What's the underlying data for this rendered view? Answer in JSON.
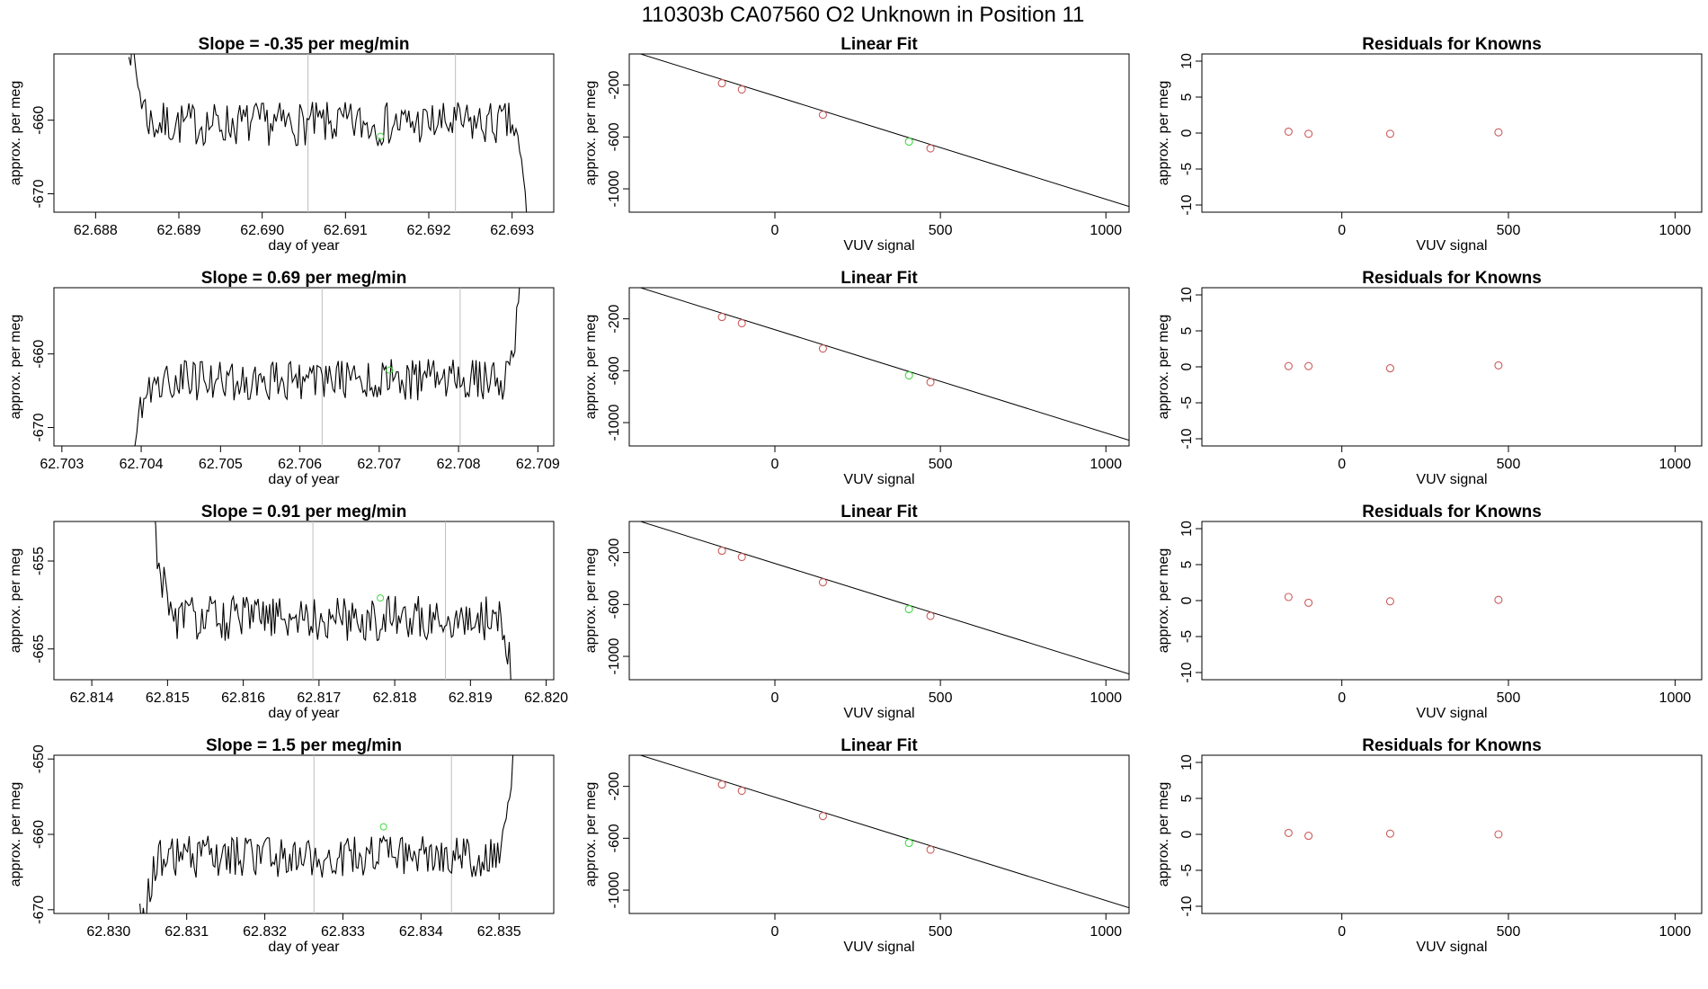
{
  "figure": {
    "title": "110303b      CA07560    O2 Unknown in Position  11",
    "colors": {
      "known": "#cd5c5c",
      "unknown": "#3ed83e",
      "line": "#000000",
      "vline": "#bebebe"
    }
  },
  "chart_data": [
    {
      "row": 1,
      "panel": "timeseries",
      "type": "line",
      "title": "Slope =  -0.35  per meg/min",
      "xlabel": "day of year",
      "ylabel": "approx. per meg",
      "xlim": [
        62.6875,
        62.6935
      ],
      "ylim": [
        -672.5,
        -651
      ],
      "xticks": [
        "62.688",
        "62.689",
        "62.690",
        "62.691",
        "62.692",
        "62.693"
      ],
      "yticks": [
        "-660",
        "-670"
      ],
      "trace": {
        "start": 62.6884,
        "end": 62.6932,
        "base": -660.5,
        "slope_per_day": 0,
        "noise": 3.0,
        "rise_before": 12,
        "drop_after": 14,
        "seed": 7
      },
      "window": [
        62.69055,
        62.69232
      ],
      "unknown_point": {
        "x": 62.69142,
        "y": -662.2
      }
    },
    {
      "row": 1,
      "panel": "fit",
      "type": "scatter",
      "title": "Linear Fit",
      "xlabel": "VUV signal",
      "ylabel": "approx. per meg",
      "xlim": [
        -440,
        1070
      ],
      "ylim": [
        -1180,
        40
      ],
      "xticks": [
        "0",
        "500",
        "1000"
      ],
      "yticks": [
        "-200",
        "-600",
        "-1000"
      ],
      "line": {
        "x": [
          -430,
          1070
        ],
        "y": [
          59,
          -1136
        ]
      },
      "knowns": [
        {
          "x": -160,
          "y": -186
        },
        {
          "x": -100,
          "y": -234
        },
        {
          "x": 145,
          "y": -429
        },
        {
          "x": 470,
          "y": -688
        }
      ],
      "unknown_point": {
        "x": 405,
        "y": -636
      }
    },
    {
      "row": 1,
      "panel": "residuals",
      "type": "scatter",
      "title": "Residuals for Knowns",
      "xlabel": "VUV signal",
      "ylabel": "approx. per meg",
      "xlim": [
        -420,
        1080
      ],
      "ylim": [
        -11,
        11
      ],
      "xticks": [
        "0",
        "500",
        "1000"
      ],
      "yticks": [
        "10",
        "5",
        "0",
        "-5",
        "-10"
      ],
      "points": [
        {
          "x": -160,
          "y": 0.2
        },
        {
          "x": -100,
          "y": -0.1
        },
        {
          "x": 145,
          "y": -0.1
        },
        {
          "x": 470,
          "y": 0.1
        }
      ]
    },
    {
      "row": 2,
      "panel": "timeseries",
      "type": "line",
      "title": "Slope =  0.69  per meg/min",
      "xlabel": "day of year",
      "ylabel": "approx. per meg",
      "xlim": [
        62.7029,
        62.7092
      ],
      "ylim": [
        -672.5,
        -651
      ],
      "xticks": [
        "62.703",
        "62.704",
        "62.705",
        "62.706",
        "62.707",
        "62.708",
        "62.709"
      ],
      "yticks": [
        "-660",
        "-670"
      ],
      "trace": {
        "start": 62.7039,
        "end": 62.7088,
        "base": -663.5,
        "slope_per_day": 1100,
        "noise": 2.8,
        "rise_before": -9,
        "drop_after": -14,
        "seed": 19
      },
      "window": [
        62.70628,
        62.70802
      ],
      "unknown_point": {
        "x": 62.70713,
        "y": -662.2
      }
    },
    {
      "row": 2,
      "panel": "fit",
      "type": "scatter",
      "title": "Linear Fit",
      "xlabel": "VUV signal",
      "ylabel": "approx. per meg",
      "xlim": [
        -440,
        1070
      ],
      "ylim": [
        -1180,
        40
      ],
      "xticks": [
        "0",
        "500",
        "1000"
      ],
      "yticks": [
        "-200",
        "-600",
        "-1000"
      ],
      "line": {
        "x": [
          -430,
          1070
        ],
        "y": [
          59,
          -1136
        ]
      },
      "knowns": [
        {
          "x": -160,
          "y": -186
        },
        {
          "x": -100,
          "y": -234
        },
        {
          "x": 145,
          "y": -429
        },
        {
          "x": 470,
          "y": -688
        }
      ],
      "unknown_point": {
        "x": 405,
        "y": -636
      }
    },
    {
      "row": 2,
      "panel": "residuals",
      "type": "scatter",
      "title": "Residuals for Knowns",
      "xlabel": "VUV signal",
      "ylabel": "approx. per meg",
      "xlim": [
        -420,
        1080
      ],
      "ylim": [
        -11,
        11
      ],
      "xticks": [
        "0",
        "500",
        "1000"
      ],
      "yticks": [
        "10",
        "5",
        "0",
        "-5",
        "-10"
      ],
      "points": [
        {
          "x": -160,
          "y": 0.1
        },
        {
          "x": -100,
          "y": 0.1
        },
        {
          "x": 145,
          "y": -0.2
        },
        {
          "x": 470,
          "y": 0.2
        }
      ]
    },
    {
      "row": 3,
      "panel": "timeseries",
      "type": "line",
      "title": "Slope =  0.91  per meg/min",
      "xlabel": "day of year",
      "ylabel": "approx. per meg",
      "xlim": [
        62.8135,
        62.8201
      ],
      "ylim": [
        -668.5,
        -650.5
      ],
      "xticks": [
        "62.814",
        "62.815",
        "62.816",
        "62.817",
        "62.818",
        "62.819",
        "62.820"
      ],
      "yticks": [
        "-655",
        "-665"
      ],
      "trace": {
        "start": 62.8148,
        "end": 62.8196,
        "base": -661.5,
        "slope_per_day": 0,
        "noise": 2.6,
        "rise_before": 12,
        "drop_after": 12,
        "seed": 31
      },
      "window": [
        62.81692,
        62.81867
      ],
      "unknown_point": {
        "x": 62.81781,
        "y": -659.2
      }
    },
    {
      "row": 3,
      "panel": "fit",
      "type": "scatter",
      "title": "Linear Fit",
      "xlabel": "VUV signal",
      "ylabel": "approx. per meg",
      "xlim": [
        -440,
        1070
      ],
      "ylim": [
        -1180,
        40
      ],
      "xticks": [
        "0",
        "500",
        "1000"
      ],
      "yticks": [
        "-200",
        "-600",
        "-1000"
      ],
      "line": {
        "x": [
          -430,
          1070
        ],
        "y": [
          59,
          -1136
        ]
      },
      "knowns": [
        {
          "x": -160,
          "y": -186
        },
        {
          "x": -100,
          "y": -234
        },
        {
          "x": 145,
          "y": -429
        },
        {
          "x": 470,
          "y": -688
        }
      ],
      "unknown_point": {
        "x": 405,
        "y": -636
      }
    },
    {
      "row": 3,
      "panel": "residuals",
      "type": "scatter",
      "title": "Residuals for Knowns",
      "xlabel": "VUV signal",
      "ylabel": "approx. per meg",
      "xlim": [
        -420,
        1080
      ],
      "ylim": [
        -11,
        11
      ],
      "xticks": [
        "0",
        "500",
        "1000"
      ],
      "yticks": [
        "10",
        "5",
        "0",
        "-5",
        "-10"
      ],
      "points": [
        {
          "x": -160,
          "y": 0.5
        },
        {
          "x": -100,
          "y": -0.3
        },
        {
          "x": 145,
          "y": -0.1
        },
        {
          "x": 470,
          "y": 0.1
        }
      ]
    },
    {
      "row": 4,
      "panel": "timeseries",
      "type": "line",
      "title": "Slope =  1.5  per meg/min",
      "xlabel": "day of year",
      "ylabel": "approx. per meg",
      "xlim": [
        62.8293,
        62.8357
      ],
      "ylim": [
        -670.5,
        -649.5
      ],
      "xticks": [
        "62.830",
        "62.831",
        "62.832",
        "62.833",
        "62.834",
        "62.835"
      ],
      "yticks": [
        "-650",
        "-660",
        "-670"
      ],
      "trace": {
        "start": 62.8304,
        "end": 62.8352,
        "base": -663.0,
        "slope_per_day": 1200,
        "noise": 2.8,
        "rise_before": -9,
        "drop_after": -14,
        "seed": 43
      },
      "window": [
        62.83263,
        62.83439
      ],
      "unknown_point": {
        "x": 62.83352,
        "y": -659.0
      }
    },
    {
      "row": 4,
      "panel": "fit",
      "type": "scatter",
      "title": "Linear Fit",
      "xlabel": "VUV signal",
      "ylabel": "approx. per meg",
      "xlim": [
        -440,
        1070
      ],
      "ylim": [
        -1180,
        40
      ],
      "xticks": [
        "0",
        "500",
        "1000"
      ],
      "yticks": [
        "-200",
        "-600",
        "-1000"
      ],
      "line": {
        "x": [
          -430,
          1070
        ],
        "y": [
          59,
          -1136
        ]
      },
      "knowns": [
        {
          "x": -160,
          "y": -186
        },
        {
          "x": -100,
          "y": -234
        },
        {
          "x": 145,
          "y": -429
        },
        {
          "x": 470,
          "y": -688
        }
      ],
      "unknown_point": {
        "x": 405,
        "y": -636
      }
    },
    {
      "row": 4,
      "panel": "residuals",
      "type": "scatter",
      "title": "Residuals for Knowns",
      "xlabel": "VUV signal",
      "ylabel": "approx. per meg",
      "xlim": [
        -420,
        1080
      ],
      "ylim": [
        -11,
        11
      ],
      "xticks": [
        "0",
        "500",
        "1000"
      ],
      "yticks": [
        "10",
        "5",
        "0",
        "-5",
        "-10"
      ],
      "points": [
        {
          "x": -160,
          "y": 0.2
        },
        {
          "x": -100,
          "y": -0.2
        },
        {
          "x": 145,
          "y": 0.1
        },
        {
          "x": 470,
          "y": 0.0
        }
      ]
    }
  ]
}
